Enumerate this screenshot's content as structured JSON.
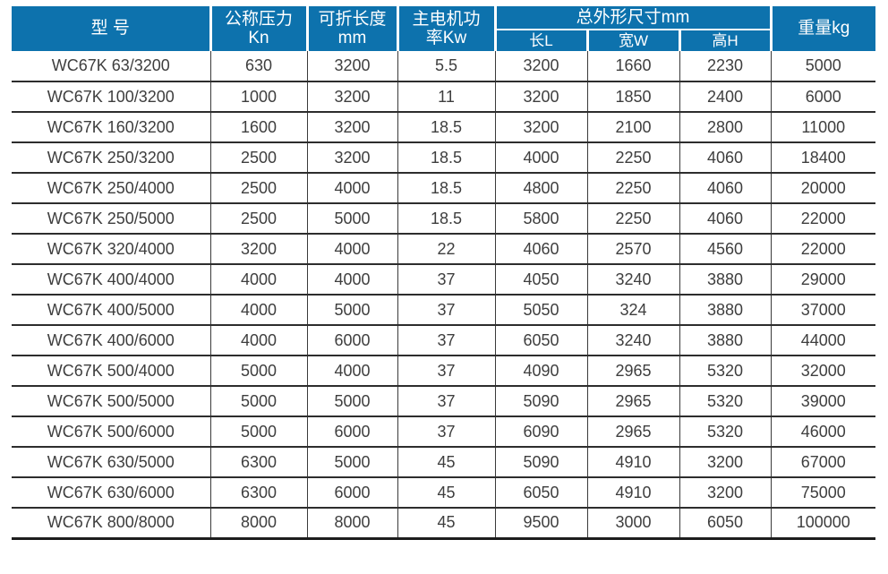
{
  "colors": {
    "header_bg": "#0d72ad",
    "header_text": "#ffffff",
    "body_text": "#3e3e3e",
    "grid_line": "#2d2d2d"
  },
  "table": {
    "header": {
      "model": "型 号",
      "pressure_line1": "公称压力",
      "pressure_line2": "Kn",
      "length_line1": "可折长度",
      "length_line2": "mm",
      "power_line1": "主电机功",
      "power_line2": "率Kw",
      "dims_group": "总外形尺寸mm",
      "dim_length": "长L",
      "dim_width": "宽W",
      "dim_height": "高H",
      "weight": "重量kg"
    },
    "rows": [
      [
        "WC67K 63/3200",
        "630",
        "3200",
        "5.5",
        "3200",
        "1660",
        "2230",
        "5000"
      ],
      [
        "WC67K 100/3200",
        "1000",
        "3200",
        "11",
        "3200",
        "1850",
        "2400",
        "6000"
      ],
      [
        "WC67K 160/3200",
        "1600",
        "3200",
        "18.5",
        "3200",
        "2100",
        "2800",
        "11000"
      ],
      [
        "WC67K 250/3200",
        "2500",
        "3200",
        "18.5",
        "4000",
        "2250",
        "4060",
        "18400"
      ],
      [
        "WC67K 250/4000",
        "2500",
        "4000",
        "18.5",
        "4800",
        "2250",
        "4060",
        "20000"
      ],
      [
        "WC67K 250/5000",
        "2500",
        "5000",
        "18.5",
        "5800",
        "2250",
        "4060",
        "22000"
      ],
      [
        "WC67K 320/4000",
        "3200",
        "4000",
        "22",
        "4060",
        "2570",
        "4560",
        "22000"
      ],
      [
        "WC67K 400/4000",
        "4000",
        "4000",
        "37",
        "4050",
        "3240",
        "3880",
        "29000"
      ],
      [
        "WC67K 400/5000",
        "4000",
        "5000",
        "37",
        "5050",
        "324",
        "3880",
        "37000"
      ],
      [
        "WC67K 400/6000",
        "4000",
        "6000",
        "37",
        "6050",
        "3240",
        "3880",
        "44000"
      ],
      [
        "WC67K 500/4000",
        "5000",
        "4000",
        "37",
        "4090",
        "2965",
        "5320",
        "32000"
      ],
      [
        "WC67K 500/5000",
        "5000",
        "5000",
        "37",
        "5090",
        "2965",
        "5320",
        "39000"
      ],
      [
        "WC67K 500/6000",
        "5000",
        "6000",
        "37",
        "6090",
        "2965",
        "5320",
        "46000"
      ],
      [
        "WC67K 630/5000",
        "6300",
        "5000",
        "45",
        "5090",
        "4910",
        "3200",
        "67000"
      ],
      [
        "WC67K 630/6000",
        "6300",
        "6000",
        "45",
        "6050",
        "4910",
        "3200",
        "75000"
      ],
      [
        "WC67K 800/8000",
        "8000",
        "8000",
        "45",
        "9500",
        "3000",
        "6050",
        "100000"
      ]
    ]
  }
}
